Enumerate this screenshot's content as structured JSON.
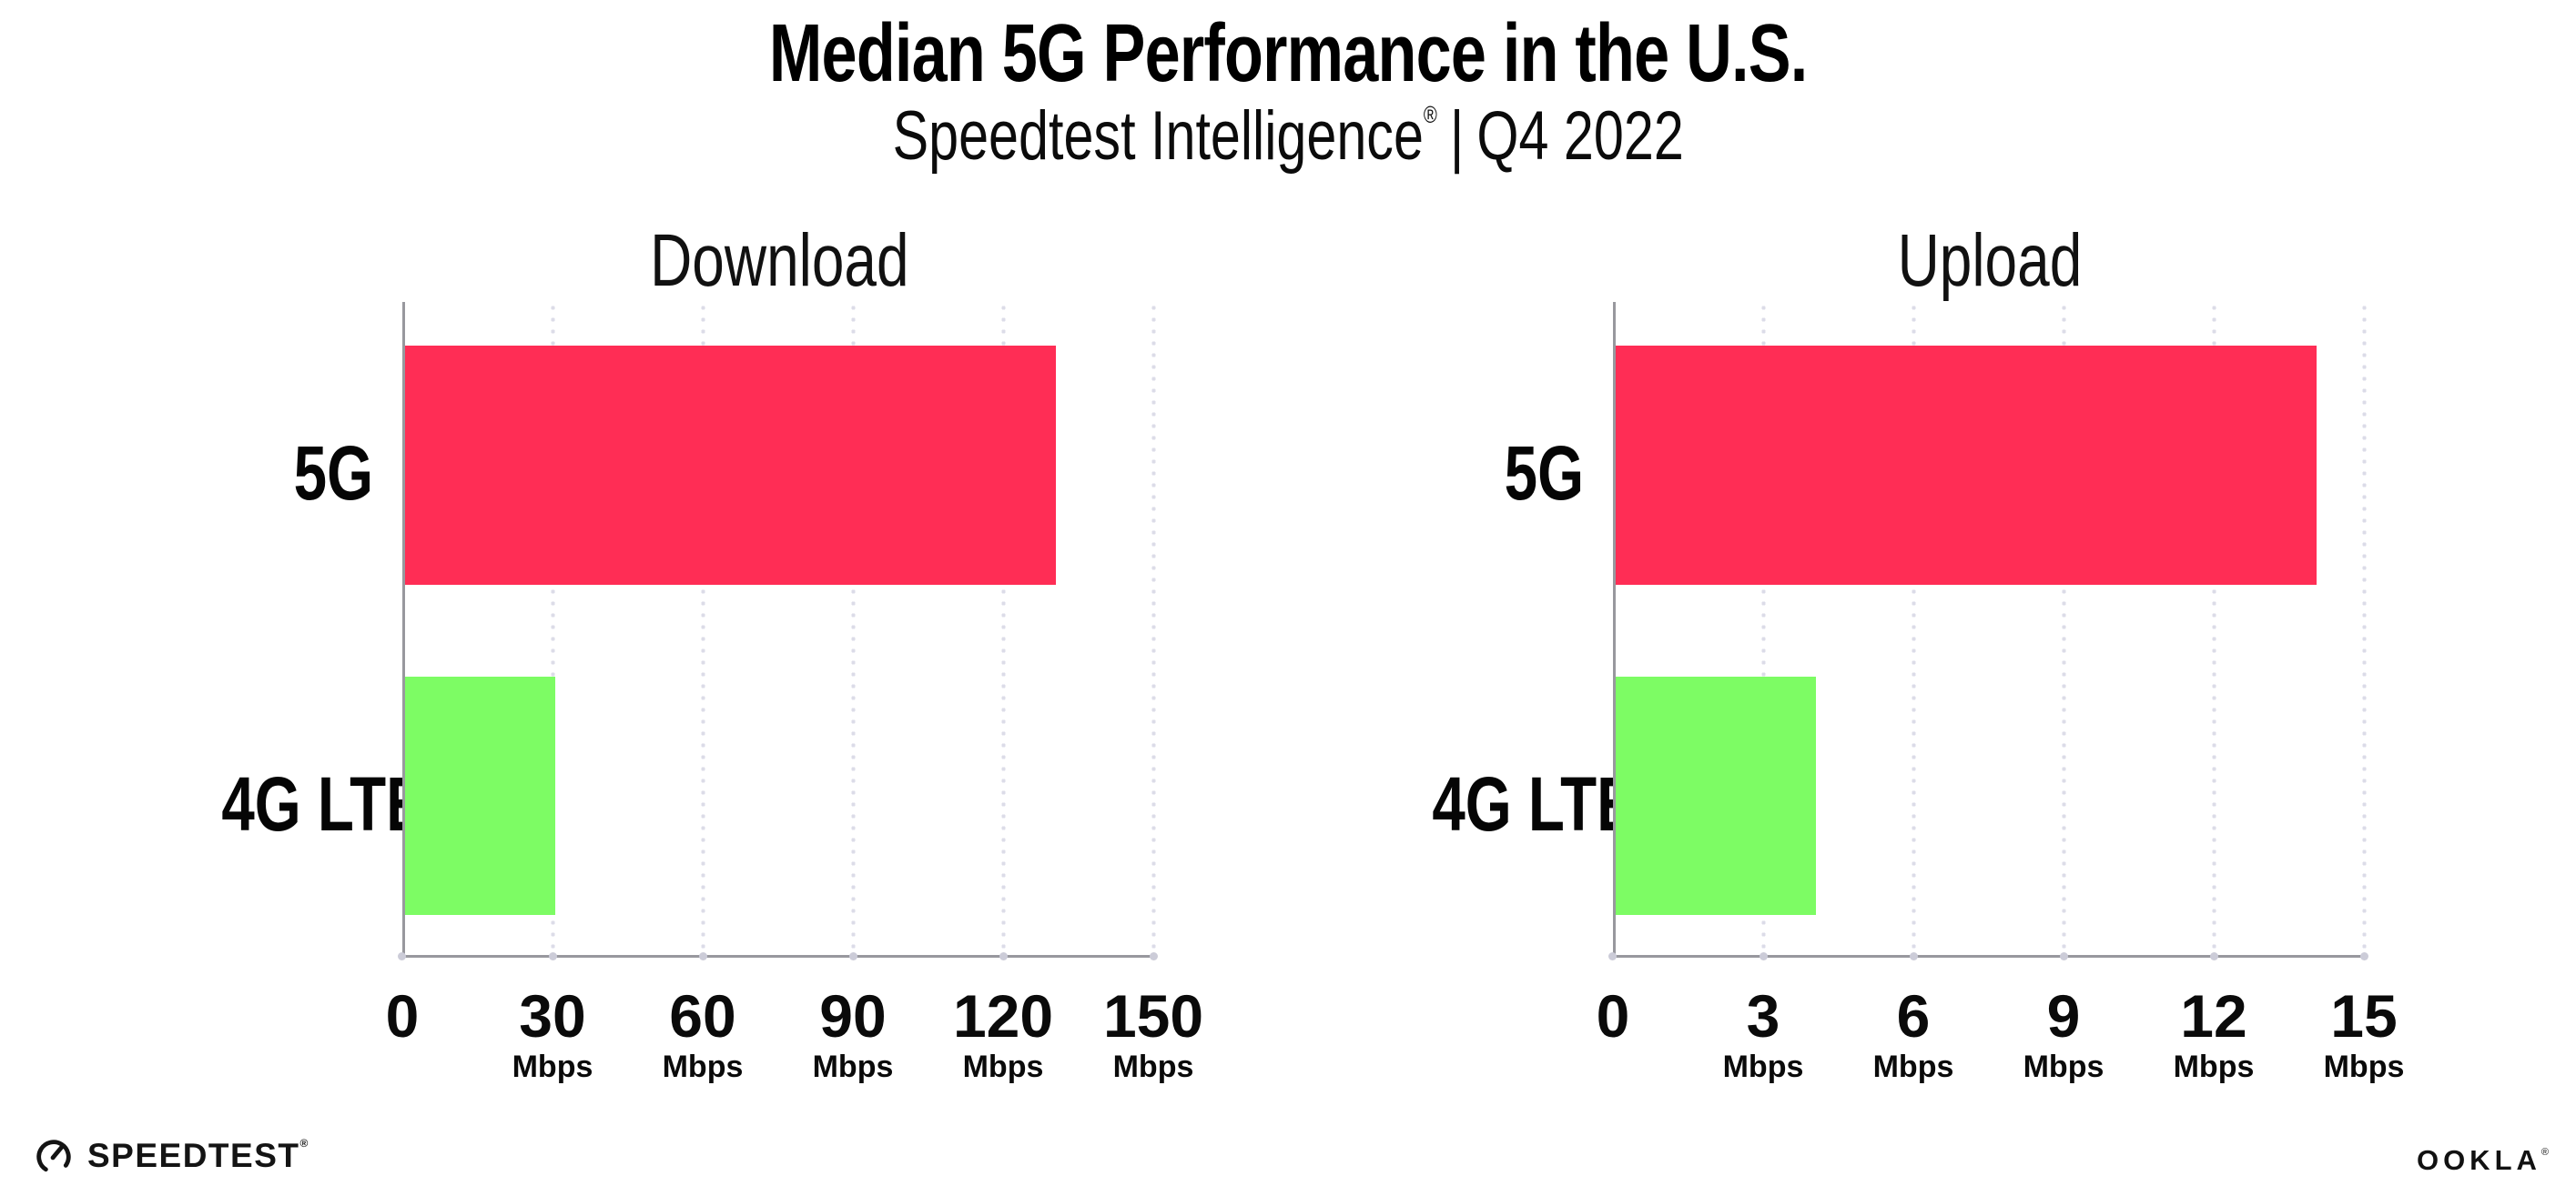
{
  "header": {
    "title": "Median 5G Performance in the U.S.",
    "subtitle_brand": "Speedtest Intelligence",
    "subtitle_reg": "®",
    "subtitle_sep": "|",
    "subtitle_period": "Q4 2022"
  },
  "chart_data": [
    {
      "type": "bar",
      "orientation": "horizontal",
      "title": "Download",
      "categories": [
        "5G",
        "4G LTE"
      ],
      "values": [
        130,
        30
      ],
      "unit": "Mbps",
      "xlim": [
        0,
        150
      ],
      "ticks": [
        0,
        30,
        60,
        90,
        120,
        150
      ],
      "tick_items": [
        {
          "num": "0",
          "unit": ""
        },
        {
          "num": "30",
          "unit": "Mbps"
        },
        {
          "num": "60",
          "unit": "Mbps"
        },
        {
          "num": "90",
          "unit": "Mbps"
        },
        {
          "num": "120",
          "unit": "Mbps"
        },
        {
          "num": "150",
          "unit": "Mbps"
        }
      ],
      "bar_colors": [
        "#FF2D55",
        "#7DFC64"
      ],
      "grid": "dotted-vertical-gridlines",
      "legend": "none"
    },
    {
      "type": "bar",
      "orientation": "horizontal",
      "title": "Upload",
      "categories": [
        "5G",
        "4G LTE"
      ],
      "values": [
        14,
        4
      ],
      "unit": "Mbps",
      "xlim": [
        0,
        15
      ],
      "ticks": [
        0,
        3,
        6,
        9,
        12,
        15
      ],
      "tick_items": [
        {
          "num": "0",
          "unit": ""
        },
        {
          "num": "3",
          "unit": "Mbps"
        },
        {
          "num": "6",
          "unit": "Mbps"
        },
        {
          "num": "9",
          "unit": "Mbps"
        },
        {
          "num": "12",
          "unit": "Mbps"
        },
        {
          "num": "15",
          "unit": "Mbps"
        }
      ],
      "bar_colors": [
        "#FF2D55",
        "#7DFC64"
      ],
      "grid": "dotted-vertical-gridlines",
      "legend": "none"
    }
  ],
  "footer": {
    "speedtest_label": "SPEEDTEST",
    "speedtest_mark": "®",
    "ookla_label": "OOKLA",
    "ookla_mark": "®"
  },
  "colors": {
    "bar_5g": "#FF2D55",
    "bar_4g_lte": "#7DFC64",
    "axis": "#98989e",
    "gridline_dots": "#dcdce8",
    "text": "#000000",
    "background": "#ffffff"
  }
}
